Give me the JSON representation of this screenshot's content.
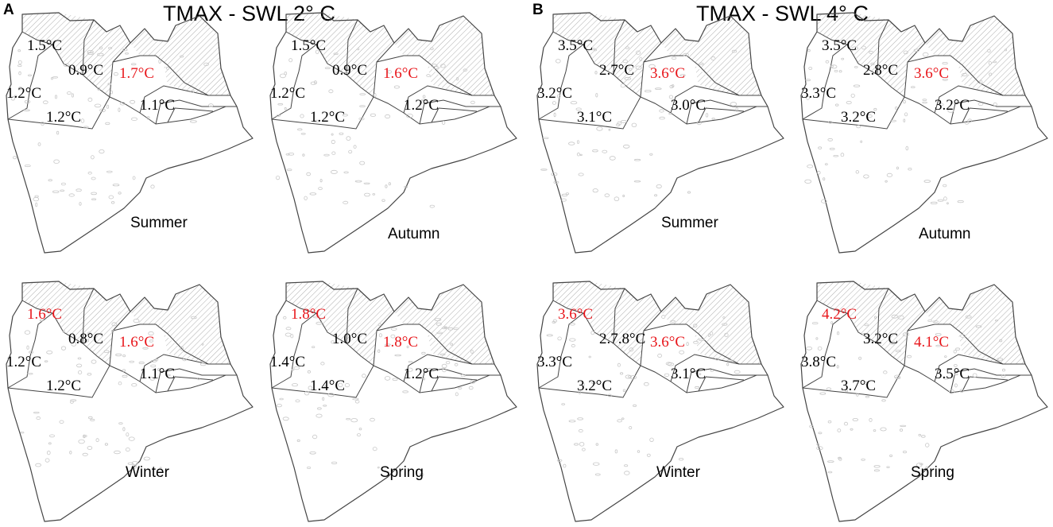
{
  "colors": {
    "normal": "#000000",
    "highlight": "#e8161b",
    "outline": "#444444",
    "hatch": "#9a9a9a",
    "speckle": "#c8c8c8"
  },
  "panels": [
    {
      "letter": "A",
      "title": "TMAX - SWL 2° C",
      "maps": [
        {
          "season": "Summer",
          "values": [
            {
              "region": "northwest",
              "text": "1.5°C",
              "highlight": false
            },
            {
              "region": "north-center",
              "text": "0.9°C",
              "highlight": false
            },
            {
              "region": "northeast",
              "text": "1.7°C",
              "highlight": true
            },
            {
              "region": "west",
              "text": "1.2°C",
              "highlight": false
            },
            {
              "region": "center",
              "text": "1.2°C",
              "highlight": false
            },
            {
              "region": "east",
              "text": "1.1°C",
              "highlight": false
            }
          ]
        },
        {
          "season": "Autumn",
          "values": [
            {
              "region": "northwest",
              "text": "1.5°C",
              "highlight": false
            },
            {
              "region": "north-center",
              "text": "0.9°C",
              "highlight": false
            },
            {
              "region": "northeast",
              "text": "1.6°C",
              "highlight": true
            },
            {
              "region": "west",
              "text": "1.2°C",
              "highlight": false
            },
            {
              "region": "center",
              "text": "1.2°C",
              "highlight": false
            },
            {
              "region": "east",
              "text": "1.2°C",
              "highlight": false
            }
          ]
        },
        {
          "season": "Winter",
          "values": [
            {
              "region": "northwest",
              "text": "1.6°C",
              "highlight": true
            },
            {
              "region": "north-center",
              "text": "0.8°C",
              "highlight": false
            },
            {
              "region": "northeast",
              "text": "1.6°C",
              "highlight": true
            },
            {
              "region": "west",
              "text": "1.2°C",
              "highlight": false
            },
            {
              "region": "center",
              "text": "1.2°C",
              "highlight": false
            },
            {
              "region": "east",
              "text": "1.1°C",
              "highlight": false
            }
          ]
        },
        {
          "season": "Spring",
          "values": [
            {
              "region": "northwest",
              "text": "1.8°C",
              "highlight": true
            },
            {
              "region": "north-center",
              "text": "1.0°C",
              "highlight": false
            },
            {
              "region": "northeast",
              "text": "1.8°C",
              "highlight": true
            },
            {
              "region": "west",
              "text": "1.4°C",
              "highlight": false
            },
            {
              "region": "center",
              "text": "1.4°C",
              "highlight": false
            },
            {
              "region": "east",
              "text": "1.2°C",
              "highlight": false
            }
          ]
        }
      ]
    },
    {
      "letter": "B",
      "title": "TMAX - SWL 4° C",
      "maps": [
        {
          "season": "Summer",
          "values": [
            {
              "region": "northwest",
              "text": "3.5°C",
              "highlight": false
            },
            {
              "region": "north-center",
              "text": "2.7°C",
              "highlight": false
            },
            {
              "region": "northeast",
              "text": "3.6°C",
              "highlight": true
            },
            {
              "region": "west",
              "text": "3.2°C",
              "highlight": false
            },
            {
              "region": "center",
              "text": "3.1°C",
              "highlight": false
            },
            {
              "region": "east",
              "text": "3.0°C",
              "highlight": false
            }
          ]
        },
        {
          "season": "Autumn",
          "values": [
            {
              "region": "northwest",
              "text": "3.5°C",
              "highlight": false
            },
            {
              "region": "north-center",
              "text": "2.8°C",
              "highlight": false
            },
            {
              "region": "northeast",
              "text": "3.6°C",
              "highlight": true
            },
            {
              "region": "west",
              "text": "3.3°C",
              "highlight": false
            },
            {
              "region": "center",
              "text": "3.2°C",
              "highlight": false
            },
            {
              "region": "east",
              "text": "3.2°C",
              "highlight": false
            }
          ]
        },
        {
          "season": "Winter",
          "values": [
            {
              "region": "northwest",
              "text": "3.6°C",
              "highlight": true
            },
            {
              "region": "north-center",
              "text": "2.7.8°C",
              "highlight": false
            },
            {
              "region": "northeast",
              "text": "3.6°C",
              "highlight": true
            },
            {
              "region": "west",
              "text": "3.3°C",
              "highlight": false
            },
            {
              "region": "center",
              "text": "3.2°C",
              "highlight": false
            },
            {
              "region": "east",
              "text": "3.1°C",
              "highlight": false
            }
          ]
        },
        {
          "season": "Spring",
          "values": [
            {
              "region": "northwest",
              "text": "4.2°C",
              "highlight": true
            },
            {
              "region": "north-center",
              "text": "3.2°C",
              "highlight": false
            },
            {
              "region": "northeast",
              "text": "4.1°C",
              "highlight": true
            },
            {
              "region": "west",
              "text": "3.8°C",
              "highlight": false
            },
            {
              "region": "center",
              "text": "3.7°C",
              "highlight": false
            },
            {
              "region": "east",
              "text": "3.5°C",
              "highlight": false
            }
          ]
        }
      ]
    }
  ]
}
